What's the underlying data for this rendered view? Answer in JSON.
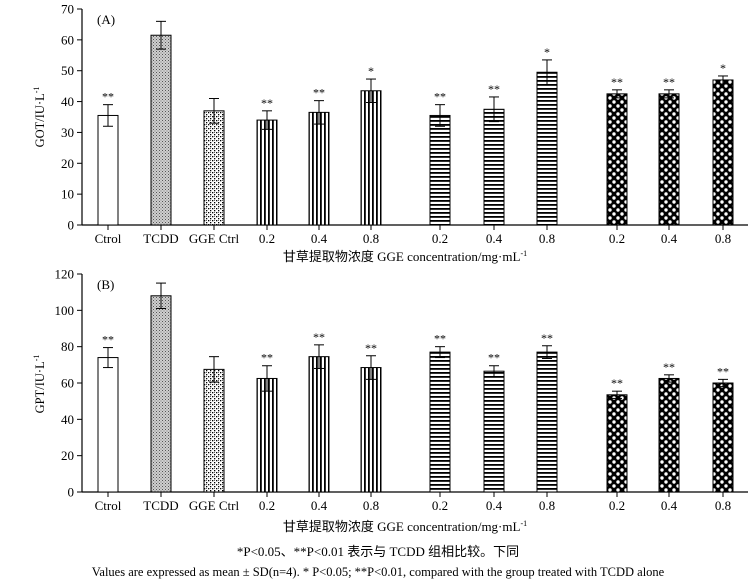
{
  "chart_data": [
    {
      "type": "bar",
      "panel_label": "(A)",
      "ylabel": "GOT/IU·L",
      "ylabel_sup": "-1",
      "xlabel": "甘草提取物浓度 GGE concentration/mg·mL",
      "xlabel_sup": "-1",
      "ylim": [
        0,
        70
      ],
      "yticks": [
        "0",
        "10",
        "20",
        "30",
        "40",
        "50",
        "60",
        "70"
      ],
      "categories": [
        "Ctrol",
        "TCDD",
        "GGE Ctrl",
        "0.2",
        "0.4",
        "0.8",
        "0.2",
        "0.4",
        "0.8",
        "0.2",
        "0.4",
        "0.8"
      ],
      "values": [
        35.5,
        61.5,
        37,
        34,
        36.5,
        43.5,
        35.5,
        37.5,
        49.5,
        42.5,
        42.5,
        47
      ],
      "errors": [
        3.5,
        4.5,
        4,
        3,
        3.8,
        3.8,
        3.5,
        4,
        4,
        1.3,
        1.3,
        1.3
      ],
      "significance": [
        "**",
        "",
        "",
        "**",
        "**",
        "*",
        "**",
        "**",
        "*",
        "**",
        "**",
        "*"
      ]
    },
    {
      "type": "bar",
      "panel_label": "(B)",
      "ylabel": "GPT/IU·L",
      "ylabel_sup": "-1",
      "xlabel": "甘草提取物浓度 GGE concentration/mg·mL",
      "xlabel_sup": "-1",
      "ylim": [
        0,
        120
      ],
      "yticks": [
        "0",
        "20",
        "40",
        "60",
        "80",
        "100",
        "120"
      ],
      "categories": [
        "Ctrol",
        "TCDD",
        "GGE Ctrl",
        "0.2",
        "0.4",
        "0.8",
        "0.2",
        "0.4",
        "0.8",
        "0.2",
        "0.4",
        "0.8"
      ],
      "values": [
        74,
        108,
        67.5,
        62.5,
        74.5,
        68.5,
        77,
        66.5,
        77,
        53.5,
        62.5,
        60
      ],
      "errors": [
        5.5,
        7,
        7,
        7,
        6.5,
        6.5,
        3,
        3,
        3.5,
        2,
        2,
        2
      ],
      "significance": [
        "**",
        "",
        "",
        "**",
        "**",
        "**",
        "**",
        "**",
        "**",
        "**",
        "**",
        "**"
      ]
    }
  ],
  "bar_patterns": [
    "blank",
    "gray-dots",
    "cross-dots",
    "vertical-lines",
    "vertical-lines",
    "vertical-lines",
    "horizontal-lines",
    "horizontal-lines",
    "horizontal-lines",
    "checker",
    "checker",
    "checker"
  ],
  "caption": {
    "line1": "*P<0.05、**P<0.01 表示与 TCDD 组相比较。下同",
    "line2": "Values are expressed as mean ± SD(n=4). * P<0.05; **P<0.01, compared with the group treated with TCDD alone"
  }
}
